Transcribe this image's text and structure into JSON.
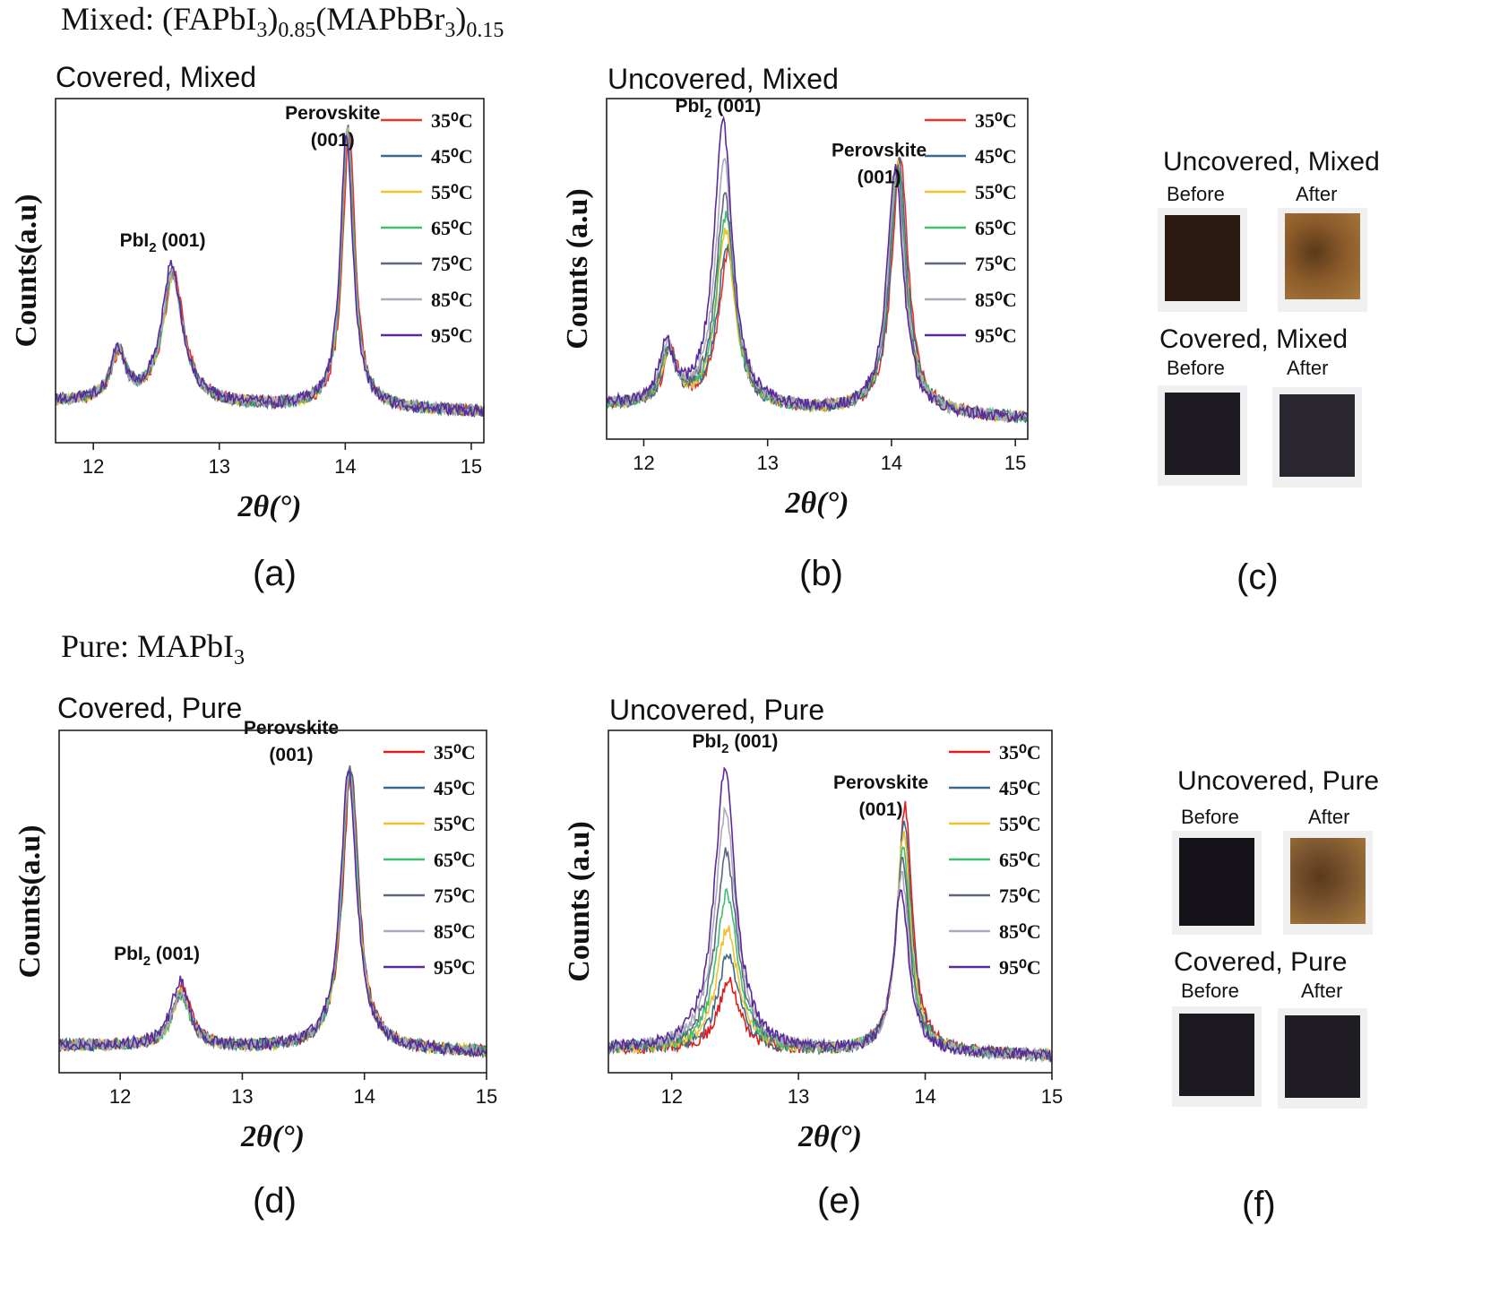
{
  "sections": {
    "mixed": {
      "title_prefix": "Mixed: (FAPbI",
      "sub1": "3",
      "mid1": ")",
      "sub2": "0.85",
      "mid2": "(MAPbBr",
      "sub3": "3",
      "mid3": ")",
      "sub4": "0.15"
    },
    "pure": {
      "title_prefix": "Pure: MAPbI",
      "sub1": "3"
    }
  },
  "panels": {
    "a": {
      "title": "Covered, Mixed",
      "label": "(a)"
    },
    "b": {
      "title": "Uncovered, Mixed",
      "label": "(b)"
    },
    "c": {
      "label": "(c)"
    },
    "d": {
      "title": "Covered, Pure",
      "label": "(d)"
    },
    "e": {
      "title": "Uncovered, Pure",
      "label": "(e)"
    },
    "f": {
      "label": "(f)"
    }
  },
  "photos": {
    "c": {
      "top_heading": "Uncovered, Mixed",
      "bottom_heading": "Covered, Mixed",
      "before": "Before",
      "after": "After",
      "colors": {
        "uncovered_before": "#2a1a10",
        "uncovered_after": "#8a5a2a",
        "covered_before": "#1e1a22",
        "covered_after": "#2a2630"
      }
    },
    "f": {
      "top_heading": "Uncovered, Pure",
      "bottom_heading": "Covered, Pure",
      "before": "Before",
      "after": "After",
      "colors": {
        "uncovered_before": "#16121a",
        "uncovered_after": "#7a5530",
        "covered_before": "#1c1820",
        "covered_after": "#201c24"
      }
    }
  },
  "chart_data": [
    {
      "id": "a",
      "type": "line",
      "title": "Covered, Mixed",
      "xlabel": "2θ(°)",
      "ylabel": "Counts(a.u)",
      "xlim": [
        11.7,
        15.1
      ],
      "xticks": [
        12,
        13,
        14,
        15
      ],
      "ylim": [
        0,
        1
      ],
      "annotations": [
        {
          "text": "Perovskite",
          "line2": "(001)",
          "x": 13.9,
          "y": 0.94
        },
        {
          "text": "PbI",
          "sub": "2",
          "tail": " (001)",
          "x": 12.55,
          "y": 0.57
        }
      ],
      "peaks": [
        {
          "center": 12.2,
          "width": 0.07
        },
        {
          "center": 12.63,
          "width": 0.1
        },
        {
          "center": 14.02,
          "width": 0.06
        }
      ],
      "background": 0.12,
      "tail": -0.03,
      "series": [
        {
          "name": "35⁰C",
          "color": "#e8332a",
          "heights": [
            0.14,
            0.38,
            0.8
          ],
          "shift": 0.01
        },
        {
          "name": "45⁰C",
          "color": "#3e6a8e",
          "heights": [
            0.14,
            0.38,
            0.82
          ],
          "shift": 0.0
        },
        {
          "name": "55⁰C",
          "color": "#f2c12e",
          "heights": [
            0.14,
            0.37,
            0.8
          ],
          "shift": 0.0
        },
        {
          "name": "65⁰C",
          "color": "#3fbf6f",
          "heights": [
            0.14,
            0.37,
            0.8
          ],
          "shift": 0.0
        },
        {
          "name": "75⁰C",
          "color": "#5e6680",
          "heights": [
            0.14,
            0.38,
            0.81
          ],
          "shift": -0.005
        },
        {
          "name": "85⁰C",
          "color": "#a9aabb",
          "heights": [
            0.14,
            0.38,
            0.8
          ],
          "shift": -0.005
        },
        {
          "name": "95⁰C",
          "color": "#5b2a9a",
          "heights": [
            0.14,
            0.4,
            0.8
          ],
          "shift": -0.01
        }
      ]
    },
    {
      "id": "b",
      "type": "line",
      "title": "Uncovered, Mixed",
      "xlabel": "2θ(°)",
      "ylabel": "Counts (a.u)",
      "xlim": [
        11.7,
        15.1
      ],
      "xticks": [
        12,
        13,
        14,
        15
      ],
      "ylim": [
        0,
        1
      ],
      "annotations": [
        {
          "text": "Perovskite",
          "line2": "(001)",
          "x": 13.9,
          "y": 0.83
        },
        {
          "text": "PbI",
          "sub": "2",
          "tail": " (001)",
          "x": 12.6,
          "y": 0.96
        }
      ],
      "peaks": [
        {
          "center": 12.2,
          "width": 0.07
        },
        {
          "center": 12.66,
          "width": 0.09
        },
        {
          "center": 14.05,
          "width": 0.08
        }
      ],
      "background": 0.1,
      "tail": -0.04,
      "series": [
        {
          "name": "35⁰C",
          "color": "#e8332a",
          "heights": [
            0.16,
            0.46,
            0.76
          ],
          "shift": 0.02
        },
        {
          "name": "45⁰C",
          "color": "#3e6a8e",
          "heights": [
            0.16,
            0.48,
            0.74
          ],
          "shift": 0.01
        },
        {
          "name": "55⁰C",
          "color": "#f2c12e",
          "heights": [
            0.16,
            0.52,
            0.73
          ],
          "shift": 0.0
        },
        {
          "name": "65⁰C",
          "color": "#3fbf6f",
          "heights": [
            0.16,
            0.56,
            0.73
          ],
          "shift": 0.0
        },
        {
          "name": "75⁰C",
          "color": "#5e6680",
          "heights": [
            0.16,
            0.62,
            0.72
          ],
          "shift": -0.005
        },
        {
          "name": "85⁰C",
          "color": "#a9aabb",
          "heights": [
            0.17,
            0.72,
            0.72
          ],
          "shift": -0.01
        },
        {
          "name": "95⁰C",
          "color": "#5b2a9a",
          "heights": [
            0.17,
            0.84,
            0.72
          ],
          "shift": -0.02
        }
      ]
    },
    {
      "id": "d",
      "type": "line",
      "title": "Covered, Pure",
      "xlabel": "2θ(°)",
      "ylabel": "Counts(a.u)",
      "xlim": [
        11.5,
        15.0
      ],
      "xticks": [
        12,
        13,
        14,
        15
      ],
      "ylim": [
        0,
        1
      ],
      "annotations": [
        {
          "text": "Perovskite",
          "line2": "(001)",
          "x": 13.4,
          "y": 0.99
        },
        {
          "text": "PbI",
          "sub": "2",
          "tail": " (001)",
          "x": 12.3,
          "y": 0.33
        }
      ],
      "peaks": [
        {
          "center": 12.5,
          "width": 0.09
        },
        {
          "center": 13.88,
          "width": 0.08
        }
      ],
      "background": 0.08,
      "tail": -0.02,
      "series": [
        {
          "name": "35⁰C",
          "color": "#e01d1d",
          "heights": [
            0.17,
            0.82
          ],
          "shift": 0.01
        },
        {
          "name": "45⁰C",
          "color": "#3e6a8e",
          "heights": [
            0.16,
            0.82
          ],
          "shift": 0.005
        },
        {
          "name": "55⁰C",
          "color": "#f2c12e",
          "heights": [
            0.16,
            0.81
          ],
          "shift": 0.0
        },
        {
          "name": "65⁰C",
          "color": "#3fbf6f",
          "heights": [
            0.15,
            0.81
          ],
          "shift": 0.0
        },
        {
          "name": "75⁰C",
          "color": "#5e6680",
          "heights": [
            0.16,
            0.82
          ],
          "shift": -0.005
        },
        {
          "name": "85⁰C",
          "color": "#a9aabb",
          "heights": [
            0.16,
            0.82
          ],
          "shift": -0.005
        },
        {
          "name": "95⁰C",
          "color": "#5b2a9a",
          "heights": [
            0.19,
            0.82
          ],
          "shift": -0.01
        }
      ]
    },
    {
      "id": "e",
      "type": "line",
      "title": "Uncovered, Pure",
      "xlabel": "2θ(°)",
      "ylabel": "Counts (a.u)",
      "xlim": [
        11.5,
        15.0
      ],
      "xticks": [
        12,
        13,
        14,
        15
      ],
      "ylim": [
        0,
        1
      ],
      "annotations": [
        {
          "text": "PbI",
          "sub": "2",
          "tail": " (001)",
          "x": 12.5,
          "y": 0.95
        },
        {
          "text": "Perovskite",
          "line2": "(001)",
          "x": 13.65,
          "y": 0.83
        }
      ],
      "peaks": [
        {
          "center": 12.44,
          "width": 0.1
        },
        {
          "center": 13.83,
          "width": 0.07
        }
      ],
      "background": 0.07,
      "tail": -0.02,
      "series": [
        {
          "name": "35⁰C",
          "color": "#e01d1d",
          "heights": [
            0.2,
            0.72
          ],
          "shift": 0.01
        },
        {
          "name": "45⁰C",
          "color": "#3e6a8e",
          "heights": [
            0.28,
            0.68
          ],
          "shift": 0.005
        },
        {
          "name": "55⁰C",
          "color": "#f2c12e",
          "heights": [
            0.36,
            0.64
          ],
          "shift": 0.0
        },
        {
          "name": "65⁰C",
          "color": "#3fbf6f",
          "heights": [
            0.46,
            0.6
          ],
          "shift": -0.005
        },
        {
          "name": "75⁰C",
          "color": "#5e6680",
          "heights": [
            0.58,
            0.56
          ],
          "shift": -0.01
        },
        {
          "name": "85⁰C",
          "color": "#a9aabb",
          "heights": [
            0.7,
            0.52
          ],
          "shift": -0.015
        },
        {
          "name": "95⁰C",
          "color": "#5b2a9a",
          "heights": [
            0.82,
            0.48
          ],
          "shift": -0.02
        }
      ]
    }
  ]
}
